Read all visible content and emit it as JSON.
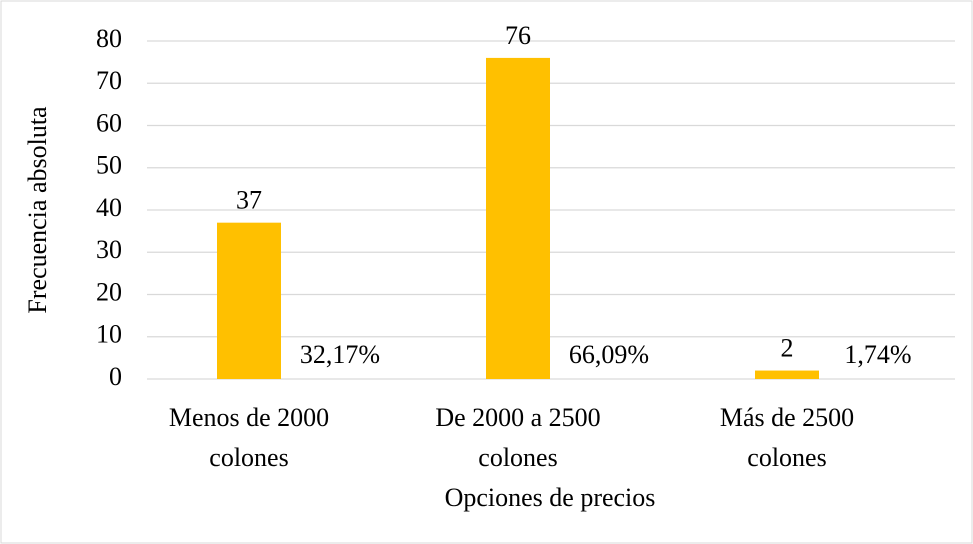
{
  "chart_data": {
    "type": "bar",
    "x_label": "Opciones de precios",
    "y_label": "Frecuencia absoluta",
    "categories": [
      "Menos de 2000 colones",
      "De 2000 a 2500 colones",
      "Más de 2500 colones"
    ],
    "values": [
      37,
      76,
      2
    ],
    "annotations": [
      "32,17%",
      "66,09%",
      "1,74%"
    ],
    "color": "#ffc000",
    "ylim": [
      0,
      80
    ],
    "yticks": [
      0,
      10,
      20,
      30,
      40,
      50,
      60,
      70,
      80
    ],
    "grid": true
  }
}
